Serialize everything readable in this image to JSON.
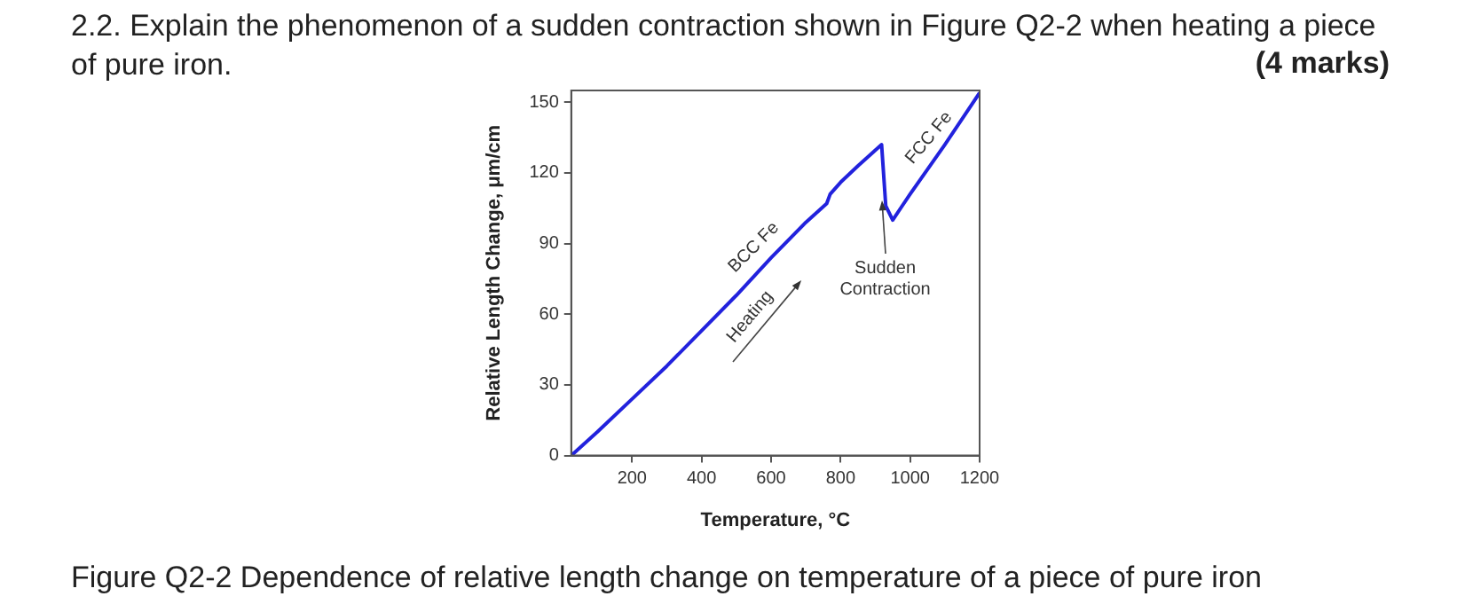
{
  "chart_data": {
    "type": "line",
    "title": "2.2. Explain the phenomenon of a sudden contraction shown in Figure Q2-2 when heating a piece of pure iron.",
    "xlabel": "Temperature, °C",
    "ylabel": "Relative Length Change, μm/cm",
    "x": [
      25,
      100,
      200,
      300,
      400,
      500,
      600,
      700,
      760,
      770,
      800,
      850,
      918,
      930,
      950,
      1000,
      1100,
      1200
    ],
    "series": [
      {
        "color": "#2222dd",
        "values": [
          0,
          10,
          24,
          38,
          53,
          68,
          84,
          99,
          107,
          111,
          116,
          123,
          132,
          106,
          100,
          111,
          132,
          154
        ]
      }
    ],
    "xlim": [
      25,
      1200
    ],
    "xticks": [
      200,
      400,
      600,
      800,
      1000,
      1200
    ],
    "ylim": [
      0,
      155
    ],
    "yticks": [
      0,
      30,
      60,
      90,
      120,
      150
    ],
    "annotations": [
      "(4 marks)",
      "BCC Fe",
      "FCC Fe",
      "Heating",
      {
        "text": "Sudden\nContraction",
        "x": 918,
        "y": 108
      },
      "Figure Q2-2 Dependence of relative length change on temperature of a piece of pure iron"
    ]
  }
}
